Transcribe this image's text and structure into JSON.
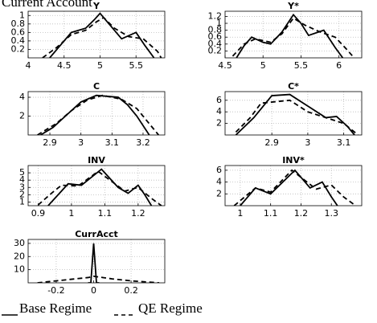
{
  "title": "Current Account",
  "chart_data": [
    {
      "type": "line",
      "title": "Y",
      "xlim": [
        4,
        5.9
      ],
      "xticks": [
        4,
        4.5,
        5,
        5.5
      ],
      "ylim": [
        0,
        1.1
      ],
      "yticks": [
        0.2,
        0.4,
        0.6,
        0.8,
        1
      ],
      "grid": true,
      "series": [
        {
          "name": "Base Regime",
          "color": "#000000",
          "x": [
            4.3,
            4.45,
            4.6,
            4.8,
            4.92,
            5.0,
            5.1,
            5.3,
            5.5,
            5.62,
            5.75
          ],
          "values": [
            0,
            0.3,
            0.6,
            0.7,
            0.9,
            1.05,
            0.85,
            0.45,
            0.6,
            0.3,
            0
          ]
        },
        {
          "name": "QE Regime",
          "color": "#000000",
          "x": [
            4.2,
            4.4,
            4.6,
            4.8,
            4.95,
            5.05,
            5.2,
            5.4,
            5.6,
            5.8,
            5.85
          ],
          "values": [
            0,
            0.25,
            0.55,
            0.65,
            0.85,
            0.95,
            0.7,
            0.5,
            0.45,
            0.15,
            0
          ]
        }
      ]
    },
    {
      "type": "line",
      "title": "Y*",
      "xlim": [
        4.5,
        6.3
      ],
      "xticks": [
        4.5,
        5,
        5.5,
        6
      ],
      "ylim": [
        0,
        1.35
      ],
      "yticks": [
        0.2,
        0.4,
        0.6,
        0.8,
        1,
        1.2
      ],
      "grid": true,
      "series": [
        {
          "name": "Base Regime",
          "color": "#000000",
          "x": [
            4.65,
            4.75,
            4.85,
            5.0,
            5.1,
            5.25,
            5.4,
            5.5,
            5.6,
            5.8,
            5.95,
            6.05
          ],
          "values": [
            0,
            0.35,
            0.6,
            0.45,
            0.4,
            0.75,
            1.25,
            1.0,
            0.65,
            0.8,
            0.3,
            0
          ]
        },
        {
          "name": "QE Regime",
          "color": "#000000",
          "x": [
            4.6,
            4.75,
            4.9,
            5.1,
            5.25,
            5.4,
            5.55,
            5.75,
            5.95,
            6.1,
            6.2
          ],
          "values": [
            0.05,
            0.4,
            0.55,
            0.45,
            0.7,
            1.15,
            0.95,
            0.75,
            0.6,
            0.25,
            0
          ]
        }
      ]
    },
    {
      "type": "line",
      "title": "C",
      "xlim": [
        2.83,
        3.27
      ],
      "xticks": [
        2.9,
        3,
        3.1,
        3.2
      ],
      "ylim": [
        0,
        4.6
      ],
      "yticks": [
        2,
        4
      ],
      "grid": true,
      "series": [
        {
          "name": "Base Regime",
          "color": "#000000",
          "x": [
            2.87,
            2.91,
            2.95,
            3.0,
            3.05,
            3.12,
            3.15,
            3.18,
            3.22
          ],
          "values": [
            0,
            0.8,
            2,
            3.5,
            4.2,
            4,
            3.2,
            2,
            0
          ]
        },
        {
          "name": "QE Regime",
          "color": "#000000",
          "x": [
            2.86,
            2.92,
            2.97,
            3.02,
            3.07,
            3.13,
            3.18,
            3.22,
            3.25
          ],
          "values": [
            0,
            1.2,
            2.6,
            3.7,
            4.2,
            3.8,
            2.8,
            1.2,
            0
          ]
        }
      ]
    },
    {
      "type": "line",
      "title": "C*",
      "xlim": [
        2.77,
        3.15
      ],
      "xticks": [
        2.9,
        3,
        3.1
      ],
      "ylim": [
        0,
        7.5
      ],
      "yticks": [
        2,
        4,
        6
      ],
      "grid": true,
      "series": [
        {
          "name": "Base Regime",
          "color": "#000000",
          "x": [
            2.8,
            2.85,
            2.9,
            2.95,
            3.0,
            3.05,
            3.08,
            3.11,
            3.13
          ],
          "values": [
            0,
            3,
            6.8,
            7,
            5,
            3,
            3.2,
            1.5,
            0
          ]
        },
        {
          "name": "QE Regime",
          "color": "#000000",
          "x": [
            2.8,
            2.84,
            2.87,
            2.95,
            3.0,
            3.05,
            3.1,
            3.14
          ],
          "values": [
            0.5,
            3,
            5.5,
            6,
            4,
            3,
            2,
            0
          ]
        }
      ]
    },
    {
      "type": "line",
      "title": "INV",
      "xlim": [
        0.87,
        1.28
      ],
      "xticks": [
        0.9,
        1,
        1.1,
        1.2
      ],
      "ylim": [
        0.5,
        6
      ],
      "yticks": [
        1,
        2,
        3,
        4,
        5
      ],
      "grid": true,
      "series": [
        {
          "name": "Base Regime",
          "color": "#000000",
          "x": [
            0.93,
            0.96,
            0.99,
            1.03,
            1.09,
            1.14,
            1.17,
            1.2,
            1.22,
            1.24
          ],
          "values": [
            0.5,
            2,
            3.5,
            3.3,
            5.5,
            3,
            2.2,
            3.3,
            2,
            0.5
          ]
        },
        {
          "name": "QE Regime",
          "color": "#000000",
          "x": [
            0.9,
            0.94,
            0.97,
            1.02,
            1.08,
            1.16,
            1.2,
            1.24,
            1.27
          ],
          "values": [
            0.6,
            2.2,
            3.3,
            3.2,
            5.2,
            2.5,
            3,
            1.5,
            0.5
          ]
        }
      ]
    },
    {
      "type": "line",
      "title": "INV*",
      "xlim": [
        0.95,
        1.4
      ],
      "xticks": [
        1,
        1.1,
        1.2,
        1.3
      ],
      "ylim": [
        0,
        6.8
      ],
      "yticks": [
        2,
        4,
        6
      ],
      "grid": true,
      "series": [
        {
          "name": "Base Regime",
          "color": "#000000",
          "x": [
            1.0,
            1.05,
            1.1,
            1.18,
            1.23,
            1.27,
            1.3,
            1.32
          ],
          "values": [
            0,
            3,
            2,
            6,
            3,
            4,
            1.5,
            0
          ]
        },
        {
          "name": "QE Regime",
          "color": "#000000",
          "x": [
            0.98,
            1.05,
            1.1,
            1.17,
            1.25,
            1.3,
            1.34,
            1.38
          ],
          "values": [
            0,
            3,
            2.3,
            6,
            2.8,
            3.5,
            1.5,
            0
          ]
        }
      ]
    },
    {
      "type": "line",
      "title": "CurrAcct",
      "xlim": [
        -0.35,
        0.38
      ],
      "xticks": [
        -0.2,
        0,
        0.2
      ],
      "ylim": [
        0,
        33
      ],
      "yticks": [
        10,
        20,
        30
      ],
      "grid": true,
      "series": [
        {
          "name": "Base Regime",
          "color": "#000000",
          "x": [
            -0.03,
            -0.015,
            0,
            0.015,
            0.03
          ],
          "values": [
            0,
            0,
            30,
            0,
            0
          ]
        },
        {
          "name": "QE Regime",
          "color": "#000000",
          "x": [
            -0.3,
            -0.2,
            -0.1,
            -0.03,
            0,
            0.05,
            0.1,
            0.2,
            0.35
          ],
          "values": [
            0,
            1.5,
            3,
            4,
            5,
            4,
            3,
            1.5,
            0
          ]
        }
      ]
    }
  ]
}
